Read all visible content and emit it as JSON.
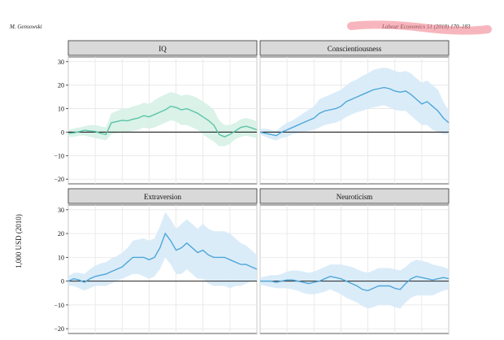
{
  "header": {
    "left": "M. Gensowski",
    "right": "Labour Economics 51 (2018) 170–183"
  },
  "chart_data": {
    "type": "line",
    "ylabel": "1,000 USD (2010)",
    "ylim": [
      -22,
      32
    ],
    "yticks": [
      -20,
      -10,
      0,
      10,
      20,
      30
    ],
    "grid": true,
    "reference_line": 0,
    "panels": [
      {
        "title": "IQ",
        "color": "#5cc4a8",
        "band_color": "#d6f1e6",
        "x": [
          0,
          2,
          4,
          6,
          8,
          10,
          12,
          14,
          16,
          18,
          20,
          22,
          24,
          26,
          28,
          30,
          32,
          34,
          36,
          38,
          40,
          42,
          44,
          46,
          48,
          50,
          52,
          54,
          56,
          58,
          60,
          62,
          64,
          66,
          68,
          70
        ],
        "values": [
          -0.5,
          -0.3,
          0.2,
          0.8,
          0.5,
          0.3,
          -0.5,
          -1,
          4,
          4.5,
          5,
          4.8,
          5.5,
          6,
          7,
          6.5,
          7.5,
          8.5,
          9.5,
          11,
          10.5,
          9.5,
          10,
          9,
          8,
          6.5,
          5,
          3,
          -1,
          -2,
          -1,
          0.5,
          2,
          2.5,
          1.8,
          1
        ],
        "lower": [
          -2,
          -2,
          -1.5,
          -1.5,
          -2,
          -2.5,
          -3,
          -3.5,
          -1,
          -0.5,
          0,
          0,
          0.5,
          1,
          2,
          1.5,
          2,
          3,
          4,
          5,
          4.5,
          3,
          3,
          2,
          1,
          -1,
          -2.5,
          -4,
          -6,
          -6,
          -5,
          -3,
          -2,
          -1.5,
          -2,
          -2.5
        ],
        "upper": [
          1,
          1.5,
          2,
          2.5,
          3,
          3,
          2.5,
          2,
          8,
          9,
          10,
          10,
          11,
          11.5,
          12.5,
          12,
          13.5,
          15,
          16,
          17,
          16.5,
          15.5,
          16,
          15.5,
          14.5,
          13,
          11.5,
          9.5,
          5,
          3,
          3,
          4,
          5.5,
          6,
          5.5,
          4.5
        ]
      },
      {
        "title": "Conscientiousness",
        "color": "#4ea7d8",
        "band_color": "#d7eaf8",
        "x": [
          0,
          2,
          4,
          6,
          8,
          10,
          12,
          14,
          16,
          18,
          20,
          22,
          24,
          26,
          28,
          30,
          32,
          34,
          36,
          38,
          40,
          42,
          44,
          46,
          48,
          50,
          52,
          54,
          56,
          58,
          60,
          62,
          64,
          66,
          68,
          70
        ],
        "values": [
          0,
          -0.5,
          -1,
          -1.5,
          0,
          1,
          2,
          3,
          4,
          5,
          6,
          8,
          9,
          9.5,
          10,
          11,
          13,
          14,
          15,
          16,
          17,
          18,
          18.5,
          19,
          18.5,
          17.5,
          17,
          17.5,
          16,
          14,
          12,
          13,
          11,
          9,
          6,
          4
        ],
        "lower": [
          -1,
          -2,
          -3,
          -3.5,
          -2.5,
          -2,
          -1,
          -0.5,
          0,
          0.5,
          1,
          2,
          3,
          3.5,
          4,
          5,
          6.5,
          7.5,
          8.5,
          9,
          10,
          10.5,
          11,
          11.5,
          10.5,
          9.5,
          9,
          9,
          7,
          5,
          3,
          3,
          1,
          0,
          -1,
          -1
        ],
        "upper": [
          1.5,
          1.5,
          1,
          0.5,
          2.5,
          4,
          5,
          6.5,
          8,
          9.5,
          11,
          14,
          15,
          16,
          17,
          18,
          20,
          21.5,
          22.5,
          24,
          25,
          26.5,
          27,
          27.5,
          27,
          26,
          25.5,
          26,
          25,
          23,
          21,
          22,
          20,
          18,
          13,
          9
        ]
      },
      {
        "title": "Extraversion",
        "color": "#4ea7d8",
        "band_color": "#d7eaf8",
        "x": [
          0,
          2,
          4,
          6,
          8,
          10,
          12,
          14,
          16,
          18,
          20,
          22,
          24,
          26,
          28,
          30,
          32,
          34,
          36,
          38,
          40,
          42,
          44,
          46,
          48,
          50,
          52,
          54,
          56,
          58,
          60,
          62,
          64,
          66,
          68,
          70
        ],
        "values": [
          0,
          1,
          0.5,
          -0.5,
          1,
          2,
          2.5,
          3,
          4,
          5,
          6,
          8,
          10,
          10,
          10,
          9,
          10,
          14,
          20,
          17,
          13,
          14,
          16,
          14,
          12,
          13,
          11,
          10,
          10,
          10,
          9,
          8,
          7,
          7,
          6,
          5
        ],
        "lower": [
          -2,
          -2,
          -3,
          -4,
          -3,
          -2,
          -2,
          -2,
          -1,
          0,
          1,
          2,
          3,
          3,
          2,
          1,
          2,
          5,
          10,
          7,
          3,
          3,
          5,
          3,
          1,
          1,
          -1,
          -2,
          -2,
          -2,
          -3,
          -2,
          -2,
          -1,
          0,
          0
        ],
        "upper": [
          2,
          3.5,
          3.5,
          3,
          5,
          6.5,
          7.5,
          8,
          9.5,
          10.5,
          12,
          14,
          17,
          17.5,
          18,
          17,
          18,
          23,
          29,
          26,
          22,
          24,
          26,
          24,
          22,
          24,
          22,
          21,
          21,
          21,
          20,
          18,
          16,
          15,
          13,
          11
        ]
      },
      {
        "title": "Neuroticism",
        "color": "#4ea7d8",
        "band_color": "#d7eaf8",
        "x": [
          0,
          2,
          4,
          6,
          8,
          10,
          12,
          14,
          16,
          18,
          20,
          22,
          24,
          26,
          28,
          30,
          32,
          34,
          36,
          38,
          40,
          42,
          44,
          46,
          48,
          50,
          52,
          54,
          56,
          58,
          60,
          62,
          64,
          66,
          68,
          70
        ],
        "values": [
          0,
          0,
          0,
          -0.5,
          0,
          0.5,
          0.5,
          0,
          -0.5,
          -1,
          -0.5,
          0,
          1,
          2,
          1.5,
          1,
          0,
          -1,
          -2,
          -3.5,
          -4,
          -3,
          -2,
          -2,
          -2,
          -3,
          -3.5,
          -1,
          1,
          2,
          1.5,
          1,
          0.5,
          1,
          1.5,
          1
        ],
        "lower": [
          -1.5,
          -2,
          -2.5,
          -3,
          -3,
          -3,
          -3.5,
          -4,
          -5,
          -5.5,
          -5.5,
          -5,
          -4.5,
          -3.5,
          -4.5,
          -5.5,
          -7,
          -8,
          -9,
          -10.5,
          -11.5,
          -11,
          -10,
          -10,
          -10,
          -11,
          -11.5,
          -9,
          -7,
          -6,
          -6,
          -6,
          -6,
          -5,
          -4,
          -3.5
        ],
        "upper": [
          1.5,
          2,
          2.5,
          2.5,
          3,
          4,
          4.5,
          4.5,
          4,
          3.5,
          4,
          5,
          6,
          7,
          7,
          7,
          6.5,
          6,
          5,
          4,
          3.5,
          4.5,
          5.5,
          5.5,
          5.5,
          5,
          4.5,
          6,
          8,
          9,
          8.5,
          8,
          7,
          6.5,
          6,
          5
        ]
      }
    ]
  }
}
